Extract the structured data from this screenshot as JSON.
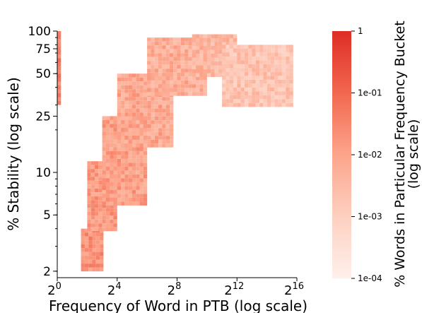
{
  "chart_data": {
    "type": "heatmap",
    "title": "",
    "xlabel": "Frequency of Word in PTB (log scale)",
    "ylabel": "% Stability (log scale)",
    "x_scale": "log2",
    "y_scale": "log",
    "xlim": [
      1,
      65536
    ],
    "ylim": [
      1.8,
      100
    ],
    "x_ticks": [
      1,
      16,
      256,
      4096,
      65536
    ],
    "x_tick_base": "2",
    "x_tick_exponents": [
      "0",
      "4",
      "8",
      "12",
      "16"
    ],
    "y_ticks": [
      2,
      5,
      10,
      25,
      50,
      75,
      100
    ],
    "y_tick_labels": [
      "2",
      "5",
      "10",
      "25",
      "50",
      "75",
      "100"
    ],
    "colorbar": {
      "label": "% Words in Particular Frequency Bucket (log scale)",
      "label_line1": "% Words in Particular Frequency Bucket",
      "label_line2": "(log scale)",
      "scale": "log",
      "range": [
        0.0001,
        1
      ],
      "ticks": [
        1,
        0.1,
        0.01,
        0.001,
        0.0001
      ],
      "tick_labels": [
        "1",
        "1e-01",
        "1e-02",
        "1e-03",
        "1e-04"
      ],
      "color_low": "#fff0eb",
      "color_high": "#de2d26"
    },
    "grid": false,
    "series": [
      {
        "regions": [
          {
            "x": [
              1,
              1.2
            ],
            "y": [
              30,
              100
            ],
            "density": 0.04
          },
          {
            "x": [
              3,
              8
            ],
            "y": [
              2,
              4
            ],
            "density": 0.02
          },
          {
            "x": [
              4,
              16
            ],
            "y": [
              4,
              12
            ],
            "density": 0.015
          },
          {
            "x": [
              8,
              64
            ],
            "y": [
              6,
              25
            ],
            "density": 0.012
          },
          {
            "x": [
              16,
              200
            ],
            "y": [
              15,
              50
            ],
            "density": 0.008
          },
          {
            "x": [
              64,
              1024
            ],
            "y": [
              35,
              90
            ],
            "density": 0.006
          },
          {
            "x": [
              512,
              4096
            ],
            "y": [
              50,
              95
            ],
            "density": 0.004
          },
          {
            "x": [
              2048,
              50000
            ],
            "y": [
              30,
              80
            ],
            "density": 0.002
          }
        ]
      }
    ]
  }
}
